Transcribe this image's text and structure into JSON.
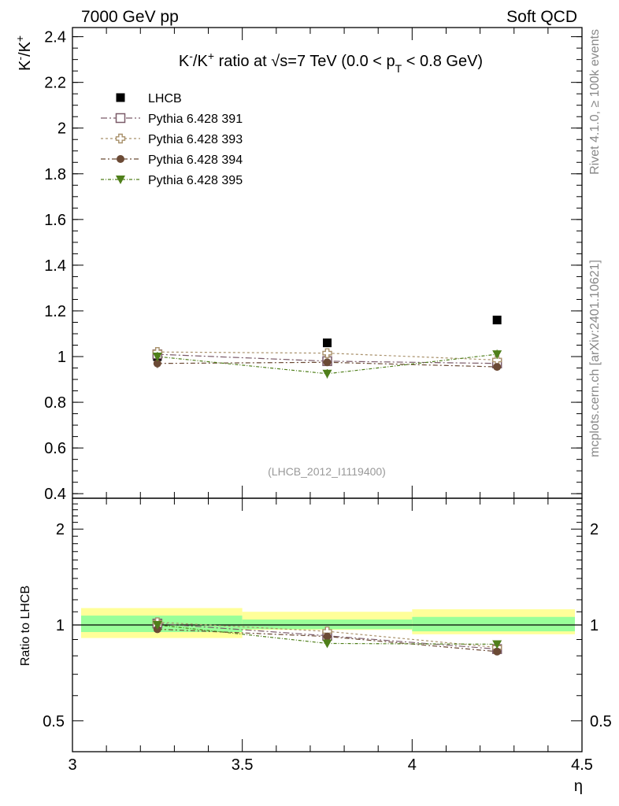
{
  "header": {
    "left": "7000 GeV pp",
    "right": "Soft QCD"
  },
  "side": {
    "rivet": "Rivet 4.1.0, ≥ 100k events",
    "mcplots": "mcplots.cern.ch [arXiv:2401.10621]"
  },
  "colors": {
    "lhcb": "#000000",
    "p391": "#7a5a68",
    "p393": "#a8906a",
    "p394": "#6b4a35",
    "p395": "#4f7f1a",
    "band_inner": "#99ff99",
    "band_outer": "#ffff99"
  },
  "chart_data": [
    {
      "panel": "main",
      "type": "scatter",
      "title": "K⁻/K⁺ ratio at √s=7 TeV (0.0 < p_T < 0.8 GeV)",
      "title_parts": {
        "pre": "K",
        "sup1": "-",
        "mid": "/K",
        "sup2": "+",
        "text1": " ratio at ",
        "sqrt": "√",
        "text2": "s=7 TeV (0.0 < p",
        "sub": "T",
        "text3": " < 0.8 GeV)"
      },
      "ylabel": {
        "pre": "K",
        "sup1": "-",
        "mid": "/K",
        "sup2": "+"
      },
      "xlabel": "",
      "xlim": [
        3.0,
        4.5
      ],
      "ylim": [
        0.38,
        2.44
      ],
      "yticks": [
        "0.4",
        "0.6",
        "0.8",
        "1",
        "1.2",
        "1.4",
        "1.6",
        "1.8",
        "2",
        "2.2",
        "2.4"
      ],
      "watermark": "(LHCB_2012_I1119400)",
      "legend_position": "top-left",
      "series": [
        {
          "name": "LHCB",
          "marker": "filled-square",
          "color": "#000000",
          "x": [
            3.25,
            3.75,
            4.25
          ],
          "y": [
            1.0,
            1.06,
            1.16
          ],
          "err": [
            0.01,
            0.01,
            0.01
          ],
          "line": false
        },
        {
          "name": "Pythia 6.428 391",
          "marker": "open-square",
          "color": "#7a5a68",
          "x": [
            3.25,
            3.75,
            4.25
          ],
          "y": [
            1.01,
            0.98,
            0.97
          ],
          "err": [
            0.012,
            0.012,
            0.012
          ],
          "line": true
        },
        {
          "name": "Pythia 6.428 393",
          "marker": "open-cross",
          "color": "#a8906a",
          "x": [
            3.25,
            3.75,
            4.25
          ],
          "y": [
            1.02,
            1.015,
            0.985
          ],
          "err": [
            0.012,
            0.012,
            0.012
          ],
          "line": true
        },
        {
          "name": "Pythia 6.428 394",
          "marker": "filled-circle",
          "color": "#6b4a35",
          "x": [
            3.25,
            3.75,
            4.25
          ],
          "y": [
            0.97,
            0.975,
            0.955
          ],
          "err": [
            0.02,
            0.015,
            0.015
          ],
          "line": true
        },
        {
          "name": "Pythia 6.428 395",
          "marker": "filled-triangle-down",
          "color": "#4f7f1a",
          "x": [
            3.25,
            3.75,
            4.25
          ],
          "y": [
            1.0,
            0.925,
            1.01
          ],
          "err": [
            0.02,
            0.02,
            0.02
          ],
          "line": true
        }
      ]
    },
    {
      "panel": "ratio",
      "type": "scatter",
      "ylabel": "Ratio to LHCB",
      "xlabel": "η",
      "xlim": [
        3.0,
        4.5
      ],
      "ylim": [
        0.4,
        2.5
      ],
      "yscale": "log",
      "yticks": [
        "0.5",
        "1",
        "2"
      ],
      "xticks": [
        "3",
        "3.5",
        "4",
        "4.5"
      ],
      "bands": [
        {
          "x": [
            3.0,
            3.5
          ],
          "inner": [
            0.95,
            1.07
          ],
          "outer": [
            0.91,
            1.13
          ]
        },
        {
          "x": [
            3.5,
            4.0
          ],
          "inner": [
            0.97,
            1.04
          ],
          "outer": [
            0.965,
            1.1
          ]
        },
        {
          "x": [
            4.0,
            4.5
          ],
          "inner": [
            0.955,
            1.06
          ],
          "outer": [
            0.935,
            1.12
          ]
        }
      ],
      "series": [
        {
          "name": "Pythia 6.428 391",
          "x": [
            3.25,
            3.75,
            4.25
          ],
          "y": [
            1.01,
            0.925,
            0.84
          ]
        },
        {
          "name": "Pythia 6.428 393",
          "x": [
            3.25,
            3.75,
            4.25
          ],
          "y": [
            1.02,
            0.955,
            0.85
          ]
        },
        {
          "name": "Pythia 6.428 394",
          "x": [
            3.25,
            3.75,
            4.25
          ],
          "y": [
            0.97,
            0.92,
            0.825
          ]
        },
        {
          "name": "Pythia 6.428 395",
          "x": [
            3.25,
            3.75,
            4.25
          ],
          "y": [
            1.0,
            0.875,
            0.87
          ]
        }
      ]
    }
  ]
}
